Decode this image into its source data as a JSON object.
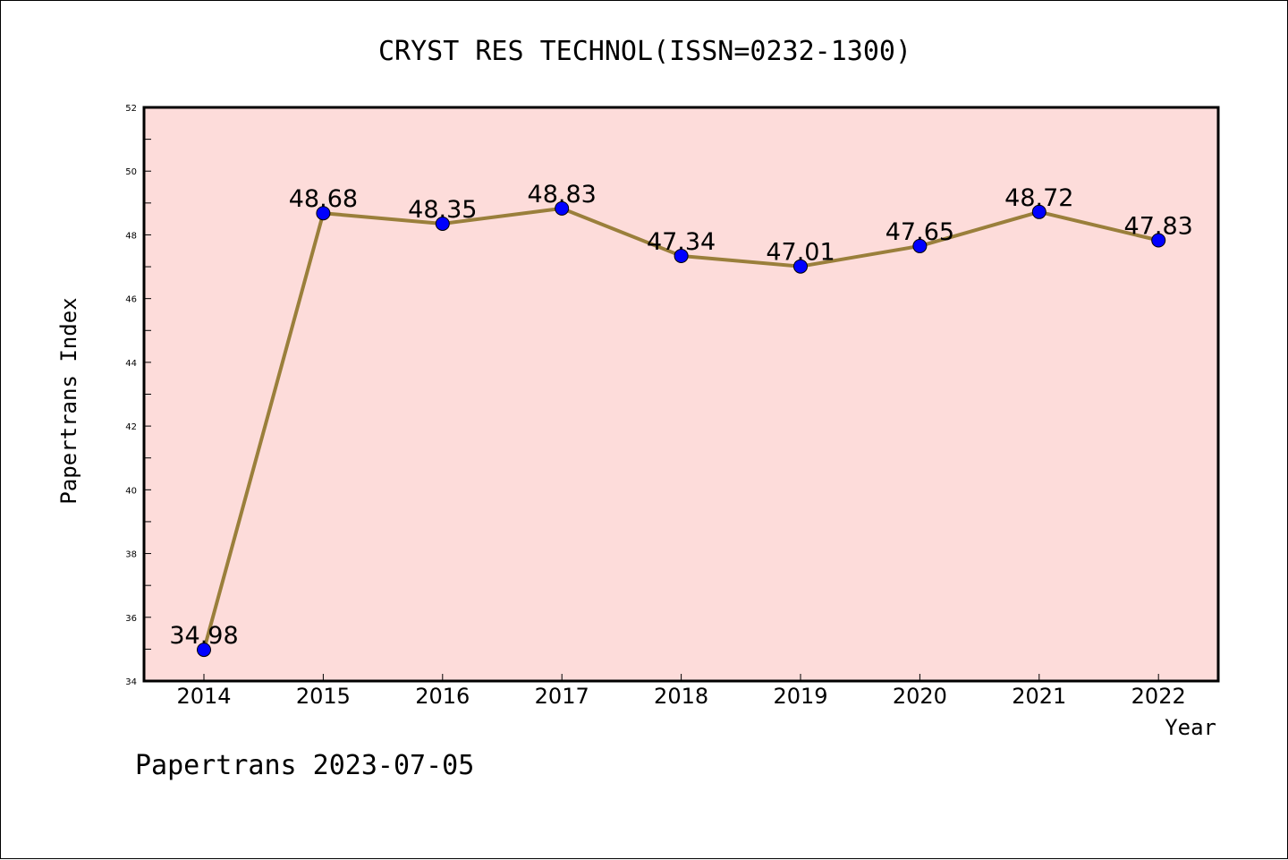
{
  "chart_data": {
    "type": "line",
    "title": "CRYST RES TECHNOL(ISSN=0232-1300)",
    "xlabel": "Year",
    "ylabel": "Papertrans Index",
    "ylim": [
      34,
      52
    ],
    "yticks": [
      34,
      36,
      38,
      40,
      42,
      44,
      46,
      48,
      50,
      52
    ],
    "categories": [
      "2014",
      "2015",
      "2016",
      "2017",
      "2018",
      "2019",
      "2020",
      "2021",
      "2022"
    ],
    "values": [
      34.98,
      48.68,
      48.35,
      48.83,
      47.34,
      47.01,
      47.65,
      48.72,
      47.83
    ],
    "data_labels": [
      "34.98",
      "48.68",
      "48.35",
      "48.83",
      "47.34",
      "47.01",
      "47.65",
      "48.72",
      "47.83"
    ],
    "grid": false,
    "plot_background": "#fddcda",
    "line_color": "#9a7f3b",
    "marker_color": "#0000ff"
  },
  "footer": "Papertrans 2023-07-05"
}
